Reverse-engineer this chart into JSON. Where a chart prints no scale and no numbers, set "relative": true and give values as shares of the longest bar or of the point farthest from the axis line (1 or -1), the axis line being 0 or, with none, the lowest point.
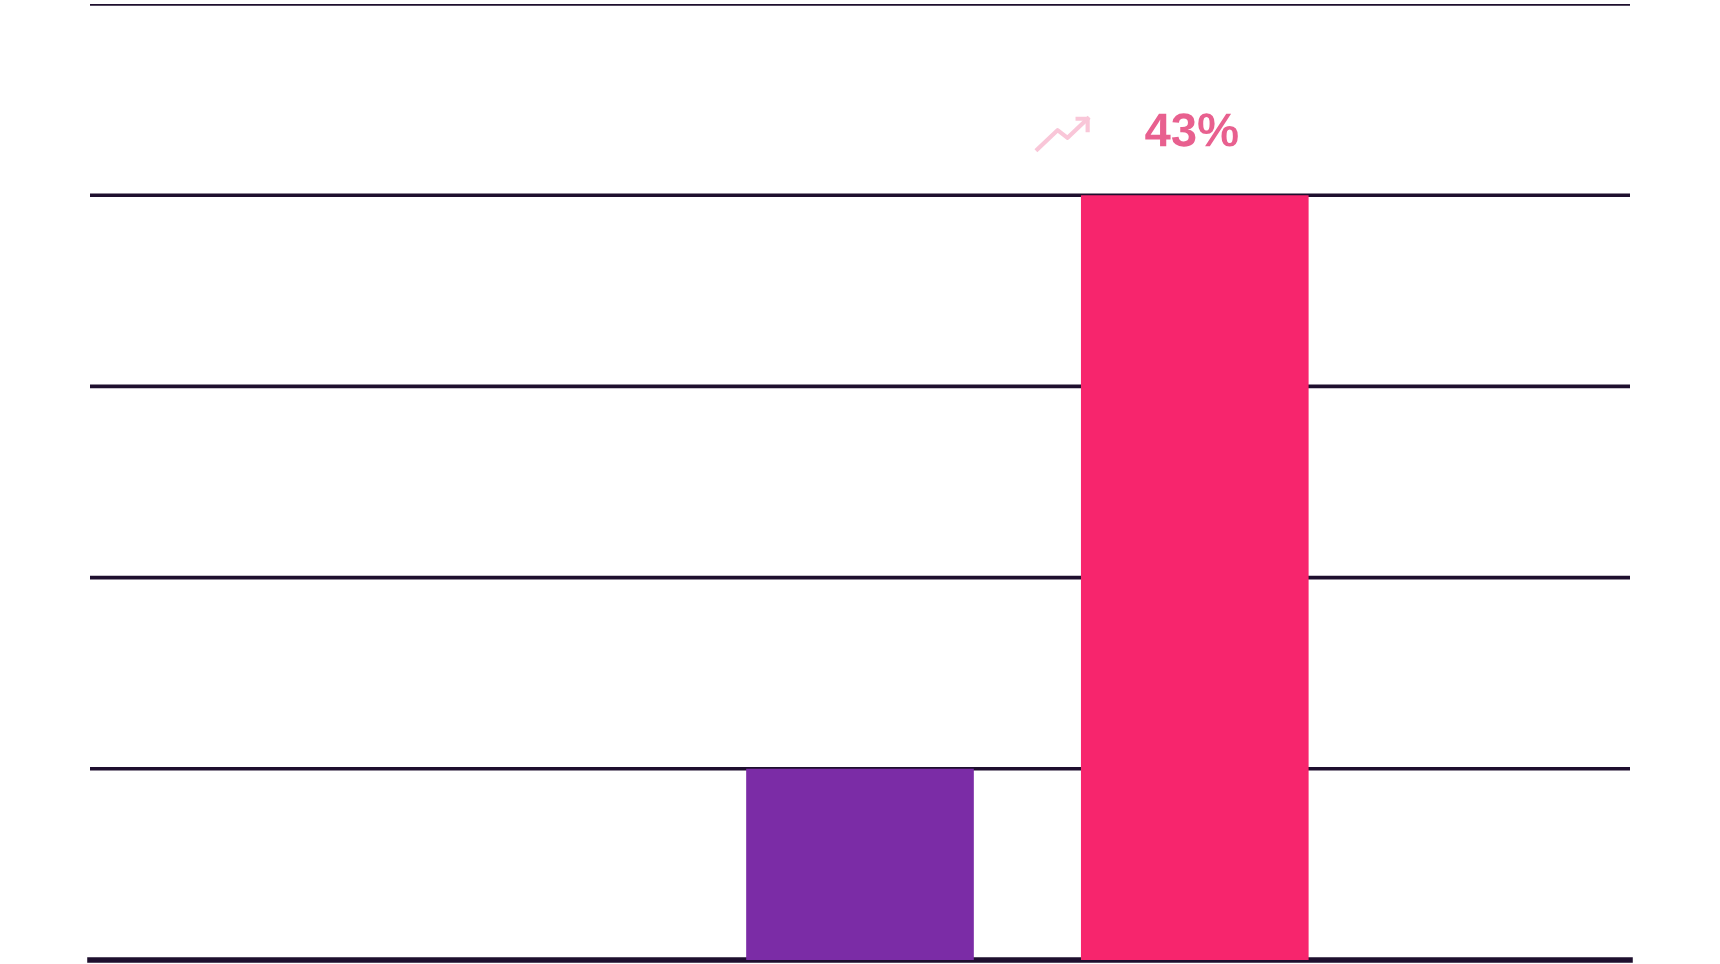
{
  "chart_data": {
    "type": "bar",
    "relative": true,
    "categories": [
      null,
      null
    ],
    "values": [
      0.25,
      1
    ],
    "colors": [
      "#7b2ca6",
      "#f7256d"
    ],
    "grid": "y",
    "annotations": [
      "43%"
    ]
  }
}
